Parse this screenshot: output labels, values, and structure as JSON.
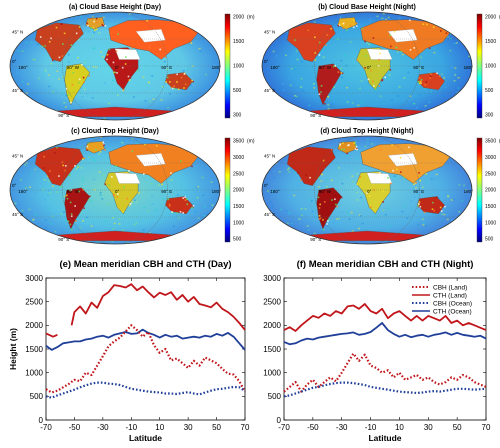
{
  "maps": [
    {
      "title": "(a) Cloud Base Height (Day)",
      "unit": "(m)",
      "ticks": [
        "2000",
        "1500",
        "1000",
        "500",
        "300"
      ]
    },
    {
      "title": "(b) Cloud Base Height (Night)",
      "unit": "(m)",
      "ticks": [
        "2000",
        "1500",
        "1000",
        "500",
        "300"
      ]
    },
    {
      "title": "(c) Cloud Top Height (Day)",
      "unit": "(m)",
      "ticks": [
        "3500",
        "3000",
        "2500",
        "2000",
        "1500",
        "1000",
        "500"
      ]
    },
    {
      "title": "(d) Cloud Top Height (Night)",
      "unit": "(m)",
      "ticks": [
        "3500",
        "3000",
        "2500",
        "2000",
        "1500",
        "1000",
        "500"
      ]
    }
  ],
  "map_lat_labels": [
    "45° N",
    "0°",
    "45° S",
    "90° S"
  ],
  "map_lon_labels": [
    "180°",
    "90° W",
    "0°",
    "90° E",
    "180°"
  ],
  "chart_data": [
    {
      "type": "line",
      "title": "(e) Mean meridian CBH and CTH (Day)",
      "xlabel": "Latitude",
      "ylabel": "Height (m)",
      "xlim": [
        -70,
        70
      ],
      "ylim": [
        0,
        3000
      ],
      "xticks": [
        -70,
        -50,
        -30,
        -10,
        10,
        30,
        50,
        70
      ],
      "yticks": [
        0,
        500,
        1000,
        1500,
        2000,
        2500,
        3000
      ],
      "series": [
        {
          "name": "CTH (Land)",
          "color": "#c0161b",
          "dash": "solid",
          "x": [
            -70,
            -65,
            -62,
            -55,
            -52,
            -50,
            -46,
            -42,
            -38,
            -34,
            -30,
            -26,
            -22,
            -18,
            -14,
            -10,
            -6,
            -2,
            2,
            6,
            10,
            14,
            18,
            22,
            26,
            30,
            34,
            38,
            42,
            46,
            50,
            54,
            58,
            62,
            66,
            70
          ],
          "y": [
            1830,
            1760,
            1800,
            null,
            2000,
            2280,
            2400,
            2250,
            2480,
            2370,
            2620,
            2700,
            2850,
            2830,
            2800,
            2870,
            2740,
            2820,
            2700,
            2590,
            2690,
            2640,
            2700,
            2540,
            2640,
            2500,
            2600,
            2450,
            2420,
            2380,
            2480,
            2350,
            2280,
            2180,
            2050,
            1900
          ]
        },
        {
          "name": "CTH (Ocean)",
          "color": "#1f3f99",
          "dash": "solid",
          "x": [
            -70,
            -66,
            -62,
            -58,
            -54,
            -50,
            -46,
            -42,
            -38,
            -34,
            -30,
            -26,
            -22,
            -18,
            -14,
            -10,
            -6,
            -2,
            2,
            6,
            10,
            14,
            18,
            22,
            26,
            30,
            34,
            38,
            42,
            46,
            50,
            54,
            58,
            62,
            66,
            70
          ],
          "y": [
            1570,
            1480,
            1540,
            1620,
            1640,
            1660,
            1660,
            1700,
            1720,
            1760,
            1780,
            1740,
            1800,
            1830,
            1860,
            1820,
            1830,
            1910,
            1840,
            1800,
            1740,
            1800,
            1760,
            1780,
            1720,
            1740,
            1760,
            1740,
            1780,
            1760,
            1820,
            1780,
            1840,
            1760,
            1620,
            1480
          ]
        },
        {
          "name": "CBH (Land)",
          "color": "#c0161b",
          "dash": "dot",
          "x": [
            -70,
            -66,
            -62,
            -58,
            -54,
            -50,
            -46,
            -42,
            -38,
            -34,
            -30,
            -26,
            -22,
            -18,
            -14,
            -10,
            -6,
            -2,
            2,
            6,
            10,
            14,
            18,
            22,
            26,
            30,
            34,
            38,
            42,
            46,
            50,
            54,
            58,
            62,
            66,
            70
          ],
          "y": [
            650,
            580,
            620,
            690,
            760,
            850,
            820,
            1000,
            950,
            1150,
            1350,
            1560,
            1660,
            1740,
            1870,
            2000,
            1900,
            1760,
            1860,
            1580,
            1420,
            1500,
            1260,
            1300,
            1200,
            1100,
            1250,
            1150,
            1320,
            1260,
            1200,
            1080,
            980,
            960,
            820,
            600
          ]
        },
        {
          "name": "CBH (Ocean)",
          "color": "#1f3f99",
          "dash": "dot",
          "x": [
            -70,
            -66,
            -62,
            -58,
            -54,
            -50,
            -46,
            -42,
            -38,
            -34,
            -30,
            -26,
            -22,
            -18,
            -14,
            -10,
            -6,
            -2,
            2,
            6,
            10,
            14,
            18,
            22,
            26,
            30,
            34,
            38,
            42,
            46,
            50,
            54,
            58,
            62,
            66,
            70
          ],
          "y": [
            500,
            470,
            520,
            560,
            600,
            640,
            690,
            730,
            770,
            790,
            790,
            770,
            760,
            740,
            700,
            660,
            640,
            620,
            600,
            590,
            580,
            560,
            560,
            550,
            570,
            590,
            560,
            540,
            580,
            620,
            650,
            660,
            680,
            700,
            690,
            610
          ]
        }
      ]
    },
    {
      "type": "line",
      "title": "(f) Mean meridian CBH and CTH (Night)",
      "xlabel": "Latitude",
      "ylabel": "",
      "xlim": [
        -70,
        70
      ],
      "ylim": [
        0,
        3000
      ],
      "xticks": [
        -70,
        -50,
        -30,
        -10,
        10,
        30,
        50,
        70
      ],
      "yticks": [
        0,
        500,
        1000,
        1500,
        2000,
        2500,
        3000
      ],
      "legend": "top-right",
      "series": [
        {
          "name": "CBH (Land)",
          "color": "#c0161b",
          "dash": "dot",
          "x": [
            -70,
            -66,
            -62,
            -58,
            -54,
            -50,
            -46,
            -42,
            -38,
            -34,
            -30,
            -26,
            -22,
            -18,
            -14,
            -10,
            -6,
            -2,
            2,
            6,
            10,
            14,
            18,
            22,
            26,
            30,
            34,
            38,
            42,
            46,
            50,
            54,
            58,
            62,
            66,
            70
          ],
          "y": [
            600,
            700,
            800,
            600,
            750,
            850,
            700,
            800,
            900,
            820,
            1000,
            1200,
            1400,
            1250,
            1380,
            1150,
            1100,
            1000,
            1050,
            900,
            1000,
            850,
            900,
            950,
            850,
            900,
            800,
            750,
            800,
            900,
            850,
            950,
            900,
            800,
            750,
            700
          ]
        },
        {
          "name": "CTH (Land)",
          "color": "#c0161b",
          "dash": "solid",
          "x": [
            -70,
            -66,
            -62,
            -58,
            -54,
            -50,
            -46,
            -42,
            -38,
            -34,
            -30,
            -26,
            -22,
            -18,
            -14,
            -10,
            -6,
            -2,
            2,
            6,
            10,
            14,
            18,
            22,
            26,
            30,
            34,
            38,
            42,
            46,
            50,
            54,
            58,
            62,
            66,
            70
          ],
          "y": [
            1900,
            1960,
            1880,
            2000,
            2100,
            2200,
            2160,
            2250,
            2200,
            2300,
            2250,
            2400,
            2420,
            2350,
            2450,
            2300,
            2250,
            2350,
            2150,
            2250,
            2300,
            2200,
            2100,
            2200,
            2100,
            2200,
            2150,
            2100,
            2200,
            2050,
            2100,
            2000,
            2050,
            2000,
            1950,
            1900
          ]
        },
        {
          "name": "CBH (Ocean)",
          "color": "#1f3f99",
          "dash": "dot",
          "x": [
            -70,
            -66,
            -62,
            -58,
            -54,
            -50,
            -46,
            -42,
            -38,
            -34,
            -30,
            -26,
            -22,
            -18,
            -14,
            -10,
            -6,
            -2,
            2,
            6,
            10,
            14,
            18,
            22,
            26,
            30,
            34,
            38,
            42,
            46,
            50,
            54,
            58,
            62,
            66,
            70
          ],
          "y": [
            500,
            520,
            560,
            600,
            640,
            680,
            700,
            730,
            760,
            780,
            790,
            790,
            780,
            760,
            740,
            700,
            680,
            660,
            640,
            620,
            600,
            590,
            580,
            570,
            580,
            600,
            610,
            600,
            620,
            640,
            660,
            660,
            650,
            640,
            650,
            660
          ]
        },
        {
          "name": "CTH (Ocean)",
          "color": "#1f3f99",
          "dash": "solid",
          "x": [
            -70,
            -66,
            -62,
            -58,
            -54,
            -50,
            -46,
            -42,
            -38,
            -34,
            -30,
            -26,
            -22,
            -18,
            -14,
            -10,
            -6,
            -2,
            2,
            6,
            10,
            14,
            18,
            22,
            26,
            30,
            34,
            38,
            42,
            46,
            50,
            54,
            58,
            62,
            66,
            70
          ],
          "y": [
            1650,
            1600,
            1620,
            1680,
            1720,
            1700,
            1740,
            1760,
            1780,
            1800,
            1820,
            1830,
            1850,
            1800,
            1820,
            1860,
            1950,
            2050,
            1900,
            1820,
            1760,
            1800,
            1750,
            1780,
            1800,
            1760,
            1800,
            1820,
            1850,
            1800,
            1840,
            1800,
            1780,
            1760,
            1780,
            1720
          ]
        }
      ]
    }
  ]
}
